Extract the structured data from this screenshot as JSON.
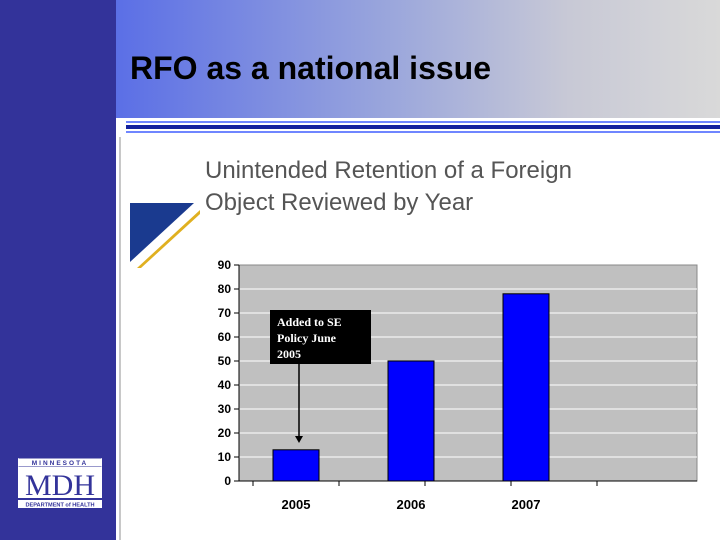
{
  "slide": {
    "title": "RFO as a national issue"
  },
  "logo": {
    "name": "MDH",
    "top_text": "MINNESOTA",
    "bottom_text": "DEPARTMENT of HEALTH"
  },
  "colors": {
    "sidebar": "#33339a",
    "bar": "#0000ff",
    "plot_background": "#c0c0c0",
    "accent_blue": "#1a3a8f",
    "accent_gold": "#e0b020"
  },
  "chart_data": {
    "type": "bar",
    "title": "Unintended Retention of a Foreign Object Reviewed by Year",
    "title_lines": [
      "Unintended Retention of a Foreign",
      "Object Reviewed by Year"
    ],
    "categories": [
      "2005",
      "2006",
      "2007"
    ],
    "values": [
      13,
      50,
      78
    ],
    "ylim": [
      0,
      90
    ],
    "yticks": [
      0,
      10,
      20,
      30,
      40,
      50,
      60,
      70,
      80,
      90
    ],
    "xlabel": "",
    "ylabel": "",
    "grid": true,
    "annotation": {
      "lines": [
        "Added to SE",
        "Policy June",
        "2005"
      ],
      "points_to": "2005"
    }
  }
}
